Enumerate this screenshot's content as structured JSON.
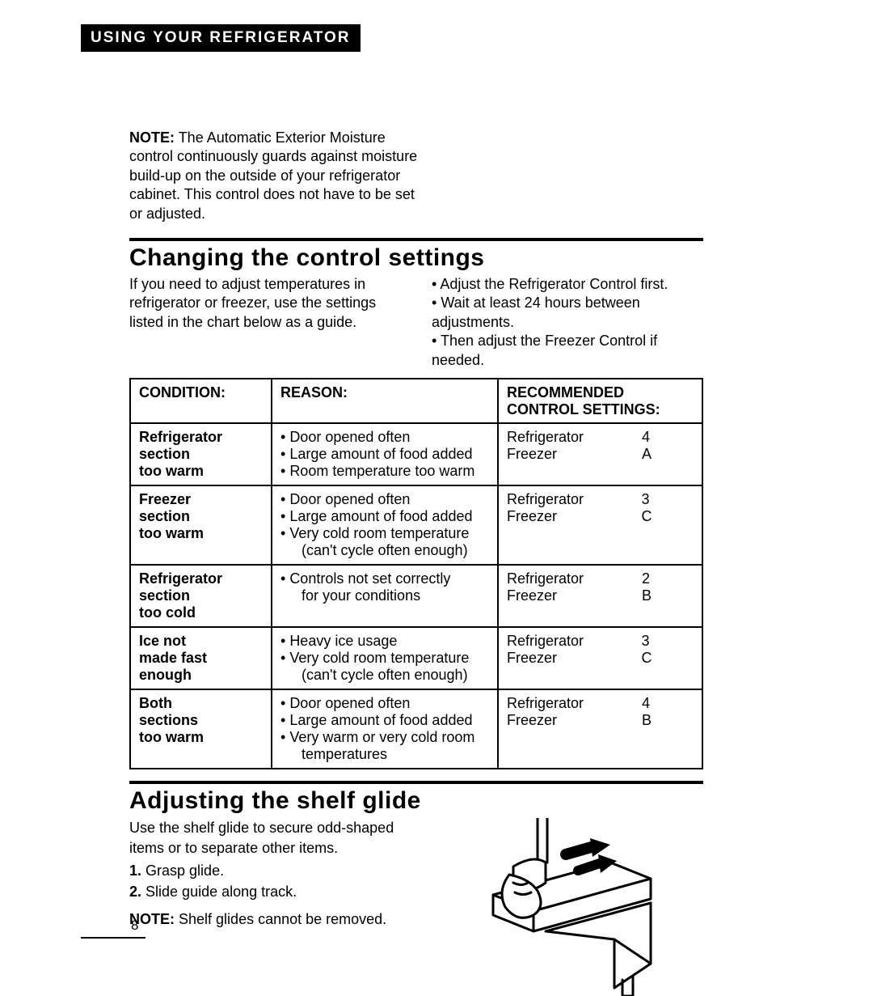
{
  "banner": "USING YOUR REFRIGERATOR",
  "note": {
    "label": "NOTE:",
    "text": "The Automatic Exterior Moisture control continuously guards against moisture build-up on the outside of your refrigerator cabinet. This control does not have to be set or adjusted."
  },
  "changing": {
    "title": "Changing the control settings",
    "intro": "If you need to adjust temperatures in refrigerator or freezer, use the settings listed in the chart below as a guide.",
    "tips": [
      "Adjust the Refrigerator Control first.",
      "Wait at least 24 hours between adjustments.",
      "Then adjust the Freezer Control if needed."
    ]
  },
  "table": {
    "headers": {
      "condition": "CONDITION:",
      "reason": "REASON:",
      "recommended_line1": "RECOMMENDED",
      "recommended_line2": "CONTROL SETTINGS:"
    },
    "rows": [
      {
        "condition": "Refrigerator section too warm",
        "reasons": [
          "Door opened often",
          "Large amount of food added",
          "Room temperature too warm"
        ],
        "rec": {
          "r_label": "Refrigerator",
          "r_val": "4",
          "f_label": "Freezer",
          "f_val": "A"
        }
      },
      {
        "condition": "Freezer section too warm",
        "reasons": [
          "Door opened often",
          "Large amount of food added",
          "Very cold room temperature (can't cycle often enough)"
        ],
        "rec": {
          "r_label": "Refrigerator",
          "r_val": "3",
          "f_label": "Freezer",
          "f_val": "C"
        }
      },
      {
        "condition": "Refrigerator section too cold",
        "reasons": [
          "Controls not set correctly for your conditions"
        ],
        "sub_indent": true,
        "rec": {
          "r_label": "Refrigerator",
          "r_val": "2",
          "f_label": "Freezer",
          "f_val": "B"
        }
      },
      {
        "condition": "Ice not made fast enough",
        "reasons": [
          "Heavy ice usage",
          "Very cold room temperature (can't cycle often enough)"
        ],
        "rec": {
          "r_label": "Refrigerator",
          "r_val": "3",
          "f_label": "Freezer",
          "f_val": "C"
        }
      },
      {
        "condition": "Both sections too warm",
        "reasons": [
          "Door opened often",
          "Large amount of food added",
          "Very warm or very cold room temperatures"
        ],
        "rec": {
          "r_label": "Refrigerator",
          "r_val": "4",
          "f_label": "Freezer",
          "f_val": "B"
        }
      }
    ]
  },
  "glide": {
    "title": "Adjusting the shelf glide",
    "intro": "Use the shelf glide to secure odd-shaped items or to separate other items.",
    "steps": [
      {
        "num": "1.",
        "text": "Grasp glide."
      },
      {
        "num": "2.",
        "text": "Slide guide along track."
      }
    ],
    "note_label": "NOTE:",
    "note_text": "Shelf glides cannot be removed."
  },
  "page_number": "8"
}
